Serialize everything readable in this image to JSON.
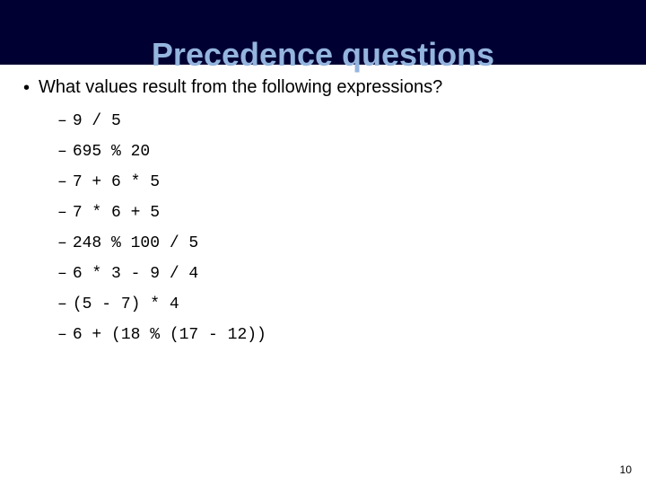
{
  "title": "Precedence questions",
  "title_color": "#94b5de",
  "band_background": "#000033",
  "question": "What values result from the following expressions?",
  "bullet_char": "•",
  "dash_char": "–",
  "expressions": [
    "9 / 5",
    "695 % 20",
    "7 + 6 * 5",
    "7 * 6 + 5",
    "248 % 100 / 5",
    "6 * 3 - 9 / 4",
    "(5 - 7) * 4",
    "6 + (18 % (17 - 12))"
  ],
  "page_number": "10",
  "fonts": {
    "title_family": "Verdana",
    "body_family": "Verdana",
    "code_family": "Courier New",
    "title_size_pt": 28,
    "body_size_pt": 16,
    "code_size_pt": 14,
    "pagenum_size_pt": 9
  },
  "colors": {
    "background": "#ffffff",
    "text": "#000000"
  }
}
